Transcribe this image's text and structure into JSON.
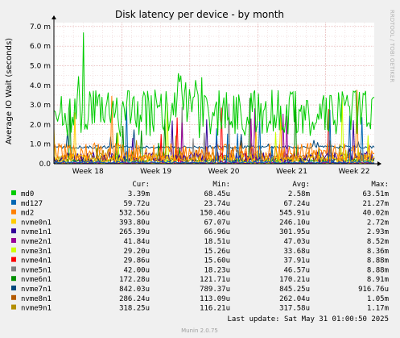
{
  "chart_data": {
    "type": "line",
    "title": "Disk latency per device - by month",
    "ylabel": "Average IO Wait (seconds)",
    "y_ticks": [
      "7.0 m",
      "6.0 m",
      "5.0 m",
      "4.0 m",
      "3.0 m",
      "2.0 m",
      "1.0 m",
      "0.0"
    ],
    "y_tick_values": [
      0.007,
      0.006,
      0.005,
      0.004,
      0.003,
      0.002,
      0.001,
      0
    ],
    "ylim": [
      0,
      0.0072
    ],
    "x_ticks": [
      "Week 18",
      "Week 19",
      "Week 20",
      "Week 21",
      "Week 22"
    ],
    "x_range_days": [
      "2025-04-28",
      "2025-05-31"
    ],
    "x_tick_dates": [
      "2025-04-28",
      "2025-05-05",
      "2025-05-12",
      "2025-05-19",
      "2025-05-26"
    ],
    "grid": true,
    "side_label": "RRDTOOL / TOBI OETIKER",
    "columns": [
      "Cur:",
      "Min:",
      "Avg:",
      "Max:"
    ],
    "series": [
      {
        "name": "md0",
        "color": "#00cc00",
        "cur": "3.39m",
        "min": "68.45u",
        "avg": "2.58m",
        "max": "63.51m"
      },
      {
        "name": "md127",
        "color": "#0066b3",
        "cur": "59.72u",
        "min": "23.74u",
        "avg": "67.24u",
        "max": "21.27m"
      },
      {
        "name": "md2",
        "color": "#ff8000",
        "cur": "532.56u",
        "min": "150.46u",
        "avg": "545.91u",
        "max": "40.02m"
      },
      {
        "name": "nvme0n1",
        "color": "#ffcc00",
        "cur": "393.80u",
        "min": "67.07u",
        "avg": "246.10u",
        "max": "2.72m"
      },
      {
        "name": "nvme1n1",
        "color": "#330099",
        "cur": "265.39u",
        "min": "66.96u",
        "avg": "301.95u",
        "max": "2.93m"
      },
      {
        "name": "nvme2n1",
        "color": "#990099",
        "cur": "41.84u",
        "min": "18.51u",
        "avg": "47.03u",
        "max": "8.52m"
      },
      {
        "name": "nvme3n1",
        "color": "#ccff00",
        "cur": "29.20u",
        "min": "15.26u",
        "avg": "33.68u",
        "max": "8.36m"
      },
      {
        "name": "nvme4n1",
        "color": "#ff0000",
        "cur": "29.86u",
        "min": "15.60u",
        "avg": "37.91u",
        "max": "8.88m"
      },
      {
        "name": "nvme5n1",
        "color": "#808080",
        "cur": "42.00u",
        "min": "18.23u",
        "avg": "46.57u",
        "max": "8.88m"
      },
      {
        "name": "nvme6n1",
        "color": "#008f00",
        "cur": "172.28u",
        "min": "121.71u",
        "avg": "170.21u",
        "max": "8.91m"
      },
      {
        "name": "nvme7n1",
        "color": "#00487d",
        "cur": "842.03u",
        "min": "789.37u",
        "avg": "845.25u",
        "max": "916.76u"
      },
      {
        "name": "nvme8n1",
        "color": "#b35a00",
        "cur": "286.24u",
        "min": "113.09u",
        "avg": "262.04u",
        "max": "1.05m"
      },
      {
        "name": "nvme9n1",
        "color": "#b38f00",
        "cur": "318.25u",
        "min": "116.21u",
        "avg": "317.58u",
        "max": "1.17m"
      }
    ],
    "last_update": "Last update: Sat May 31 01:00:50 2025",
    "footer": "Munin 2.0.75"
  }
}
